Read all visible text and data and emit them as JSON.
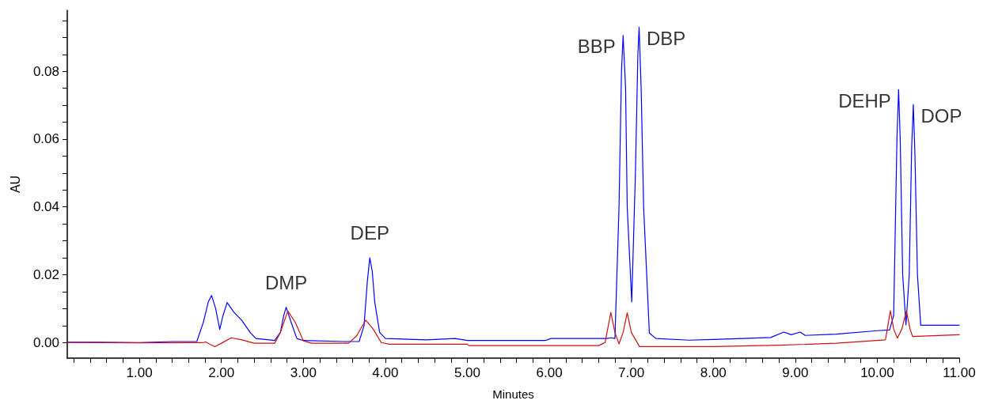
{
  "chart_data": {
    "type": "line",
    "xlabel": "Minutes",
    "ylabel": "AU",
    "xlim": [
      0.12,
      11.0
    ],
    "ylim": [
      -0.0046,
      0.098
    ],
    "xticks": [
      {
        "value": 0.2,
        "label": null
      },
      {
        "value": 0.4,
        "label": null
      },
      {
        "value": 0.6,
        "label": null
      },
      {
        "value": 0.8,
        "label": null
      },
      {
        "value": 1.0,
        "label": "1.00"
      },
      {
        "value": 1.2,
        "label": null
      },
      {
        "value": 1.4,
        "label": null
      },
      {
        "value": 1.6,
        "label": null
      },
      {
        "value": 1.8,
        "label": null
      },
      {
        "value": 2.0,
        "label": "2.00"
      },
      {
        "value": 2.2,
        "label": null
      },
      {
        "value": 2.4,
        "label": null
      },
      {
        "value": 2.6,
        "label": null
      },
      {
        "value": 2.8,
        "label": null
      },
      {
        "value": 3.0,
        "label": "3.00"
      },
      {
        "value": 3.2,
        "label": null
      },
      {
        "value": 3.4,
        "label": null
      },
      {
        "value": 3.6,
        "label": null
      },
      {
        "value": 3.8,
        "label": null
      },
      {
        "value": 4.0,
        "label": "4.00"
      },
      {
        "value": 4.2,
        "label": null
      },
      {
        "value": 4.4,
        "label": null
      },
      {
        "value": 4.6,
        "label": null
      },
      {
        "value": 4.8,
        "label": null
      },
      {
        "value": 5.0,
        "label": "5.00"
      },
      {
        "value": 5.2,
        "label": null
      },
      {
        "value": 5.4,
        "label": null
      },
      {
        "value": 5.6,
        "label": null
      },
      {
        "value": 5.8,
        "label": null
      },
      {
        "value": 6.0,
        "label": "6.00"
      },
      {
        "value": 6.2,
        "label": null
      },
      {
        "value": 6.4,
        "label": null
      },
      {
        "value": 6.6,
        "label": null
      },
      {
        "value": 6.8,
        "label": null
      },
      {
        "value": 7.0,
        "label": "7.00"
      },
      {
        "value": 7.2,
        "label": null
      },
      {
        "value": 7.4,
        "label": null
      },
      {
        "value": 7.6,
        "label": null
      },
      {
        "value": 7.8,
        "label": null
      },
      {
        "value": 8.0,
        "label": "8.00"
      },
      {
        "value": 8.2,
        "label": null
      },
      {
        "value": 8.4,
        "label": null
      },
      {
        "value": 8.6,
        "label": null
      },
      {
        "value": 8.8,
        "label": null
      },
      {
        "value": 9.0,
        "label": "9.00"
      },
      {
        "value": 9.2,
        "label": null
      },
      {
        "value": 9.4,
        "label": null
      },
      {
        "value": 9.6,
        "label": null
      },
      {
        "value": 9.8,
        "label": null
      },
      {
        "value": 10.0,
        "label": "10.00"
      },
      {
        "value": 10.2,
        "label": null
      },
      {
        "value": 10.4,
        "label": null
      },
      {
        "value": 10.6,
        "label": null
      },
      {
        "value": 10.8,
        "label": null
      },
      {
        "value": 11.0,
        "label": "11.00"
      }
    ],
    "yticks": [
      {
        "value": 0.0,
        "label": "0.00"
      },
      {
        "value": 0.005,
        "label": null
      },
      {
        "value": 0.01,
        "label": null
      },
      {
        "value": 0.015,
        "label": null
      },
      {
        "value": 0.02,
        "label": "0.02"
      },
      {
        "value": 0.025,
        "label": null
      },
      {
        "value": 0.03,
        "label": null
      },
      {
        "value": 0.035,
        "label": null
      },
      {
        "value": 0.04,
        "label": "0.04"
      },
      {
        "value": 0.045,
        "label": null
      },
      {
        "value": 0.05,
        "label": null
      },
      {
        "value": 0.055,
        "label": null
      },
      {
        "value": 0.06,
        "label": "0.06"
      },
      {
        "value": 0.065,
        "label": null
      },
      {
        "value": 0.07,
        "label": null
      },
      {
        "value": 0.075,
        "label": null
      },
      {
        "value": 0.08,
        "label": "0.08"
      },
      {
        "value": 0.085,
        "label": null
      },
      {
        "value": 0.09,
        "label": null
      },
      {
        "value": 0.095,
        "label": null
      }
    ],
    "grid": false,
    "marker": "none",
    "line_style": "solid",
    "series": [
      {
        "color": "#0000ff",
        "x": [
          0.12,
          0.5,
          1.0,
          1.4,
          1.7,
          1.78,
          1.84,
          1.88,
          1.93,
          1.98,
          2.02,
          2.07,
          2.15,
          2.25,
          2.35,
          2.42,
          2.65,
          2.72,
          2.76,
          2.79,
          2.85,
          2.92,
          3.0,
          3.5,
          3.68,
          3.74,
          3.78,
          3.81,
          3.84,
          3.87,
          3.93,
          4.0,
          4.5,
          4.85,
          5.0,
          5.5,
          5.95,
          6.02,
          6.5,
          6.7,
          6.75,
          6.8,
          6.85,
          6.88,
          6.9,
          6.93,
          6.95,
          7.005,
          7.05,
          7.08,
          7.095,
          7.12,
          7.15,
          7.22,
          7.3,
          7.7,
          8.0,
          8.5,
          8.7,
          8.86,
          8.95,
          9.06,
          9.12,
          9.5,
          10.0,
          10.15,
          10.2,
          10.24,
          10.26,
          10.28,
          10.31,
          10.35,
          10.39,
          10.42,
          10.44,
          10.46,
          10.49,
          10.53,
          11.0
        ],
        "values": [
          0.0001,
          0.0001,
          0.0,
          0.0003,
          0.0003,
          0.006,
          0.012,
          0.0139,
          0.01,
          0.0039,
          0.008,
          0.0118,
          0.009,
          0.0065,
          0.003,
          0.0012,
          0.0006,
          0.003,
          0.008,
          0.0104,
          0.006,
          0.0012,
          0.0006,
          0.0003,
          0.0003,
          0.005,
          0.018,
          0.025,
          0.021,
          0.012,
          0.003,
          0.0012,
          0.0008,
          0.0012,
          0.0006,
          0.0006,
          0.0006,
          0.0012,
          0.0012,
          0.0012,
          0.0014,
          0.0012,
          0.04,
          0.08,
          0.0906,
          0.075,
          0.04,
          0.012,
          0.05,
          0.085,
          0.093,
          0.075,
          0.04,
          0.0028,
          0.0012,
          0.0007,
          0.0009,
          0.0013,
          0.0015,
          0.0031,
          0.0023,
          0.0031,
          0.0021,
          0.0025,
          0.0035,
          0.0037,
          0.008,
          0.06,
          0.0746,
          0.06,
          0.02,
          0.0052,
          0.02,
          0.058,
          0.0702,
          0.055,
          0.02,
          0.0051,
          0.0051
        ]
      },
      {
        "color": "#cc1111",
        "x": [
          0.12,
          1.0,
          1.78,
          1.81,
          1.86,
          1.92,
          2.0,
          2.12,
          2.25,
          2.4,
          2.65,
          2.72,
          2.81,
          2.9,
          3.0,
          3.1,
          3.55,
          3.65,
          3.76,
          3.85,
          3.95,
          4.05,
          5.0,
          5.02,
          6.6,
          6.68,
          6.75,
          6.8,
          6.85,
          6.9,
          6.95,
          7.0,
          7.1,
          8.0,
          8.8,
          9.5,
          10.1,
          10.16,
          10.2,
          10.245,
          10.3,
          10.355,
          10.4,
          10.43,
          11.0
        ],
        "values": [
          0.0,
          -0.0001,
          0.0,
          0.0002,
          -0.0005,
          -0.0012,
          -0.0002,
          0.0014,
          0.0008,
          -0.0002,
          -0.0002,
          0.003,
          0.0093,
          0.006,
          0.0005,
          -0.0002,
          -0.0002,
          0.002,
          0.0066,
          0.004,
          0.0,
          -0.0005,
          -0.0005,
          -0.0009,
          -0.0009,
          0.0,
          0.0089,
          0.003,
          -0.0004,
          0.003,
          0.0088,
          0.003,
          -0.0012,
          -0.0012,
          -0.0008,
          -0.0002,
          0.0008,
          0.0094,
          0.004,
          0.0013,
          0.004,
          0.0093,
          0.004,
          0.0018,
          0.0023
        ]
      }
    ],
    "annotations": [
      {
        "text": "DMP",
        "x": 2.79,
        "y": 0.0104
      },
      {
        "text": "DEP",
        "x": 3.81,
        "y": 0.025
      },
      {
        "text": "BBP",
        "x": 6.9,
        "y": 0.0906
      },
      {
        "text": "DBP",
        "x": 7.095,
        "y": 0.093
      },
      {
        "text": "DEHP",
        "x": 10.26,
        "y": 0.0746
      },
      {
        "text": "DOP",
        "x": 10.44,
        "y": 0.0702
      }
    ]
  }
}
